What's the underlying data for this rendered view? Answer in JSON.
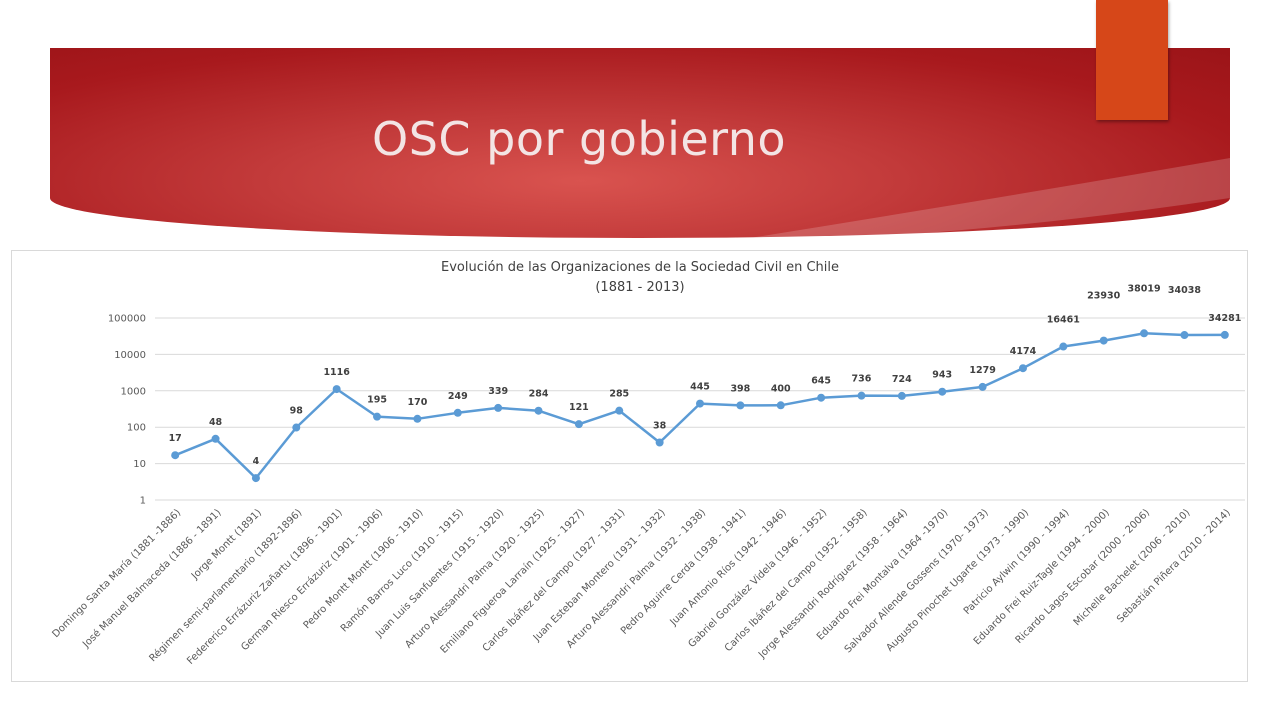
{
  "slide": {
    "title": "OSC por gobierno"
  },
  "colors": {
    "banner": "#b0262a",
    "accent": "#d64719",
    "series": "#5b9bd5",
    "grid": "#d9d9d9"
  },
  "chart_data": {
    "type": "line",
    "title_line1": "Evolución de las Organizaciones de la Sociedad Civil en Chile",
    "title_line2": "(1881 - 2013)",
    "y_scale": "log",
    "ylim": [
      1,
      100000
    ],
    "y_ticks": [
      "1",
      "10",
      "100",
      "1000",
      "10000",
      "100000"
    ],
    "grid": true,
    "legend": "none",
    "categories": [
      "Domingo Santa María (1881 -1886)",
      "José Manuel Balmaceda (1886 - 1891)",
      "Jorge Montt (1891)",
      "Régimen semi-parlamentario (1892-1896)",
      "Federerico Errázuriz Zañartu (1896 - 1901)",
      "German Riesco Errázuriz (1901 - 1906)",
      "Pedro Montt Montt (1906 - 1910)",
      "Ramón Barros Luco (1910 - 1915)",
      "Juan Luis Sanfuentes (1915 - 1920)",
      "Arturo Alessandri Palma (1920 - 1925)",
      "Emiliano Figueroa Larraín (1925 - 1927)",
      "Carlos Ibáñez del Campo (1927 - 1931)",
      "Juan Esteban Montero (1931 - 1932)",
      "Arturo Alessandri Palma (1932 - 1938)",
      "Pedro Aguirre Cerda (1938 - 1941)",
      "Juan Antonio Ríos (1942 - 1946)",
      "Gabriel González Videla (1946 - 1952)",
      "Carlos Ibáñez del Campo (1952 - 1958)",
      "Jorge Alessandri Rodríguez (1958 - 1964)",
      "Eduardo Frei Montalva (1964 -1970)",
      "Salvador Allende Gossens (1970- 1973)",
      "Augusto Pinochet Ugarte (1973 - 1990)",
      "Patricio Aylwin (1990 - 1994)",
      "Eduardo Frei Ruiz-Tagle (1994 - 2000)",
      "Ricardo Lagos Escobar (2000 - 2006)",
      "Michelle Bachelet (2006 - 2010)",
      "Sebastián Piñera (2010 - 2014)"
    ],
    "values": [
      17,
      48,
      4,
      98,
      1116,
      195,
      170,
      249,
      339,
      284,
      121,
      285,
      38,
      445,
      398,
      400,
      645,
      736,
      724,
      943,
      1279,
      4174,
      16461,
      23930,
      38019,
      34038,
      34281
    ],
    "data_labels": [
      "17",
      "48",
      "4",
      "98",
      "1116",
      "195",
      "170",
      "249",
      "339",
      "284",
      "121",
      "285",
      "38",
      "445",
      "398",
      "400",
      "645",
      "736",
      "724",
      "943",
      "1279",
      "4174",
      "16461",
      "23930",
      "38019",
      "34038",
      "34281"
    ]
  }
}
